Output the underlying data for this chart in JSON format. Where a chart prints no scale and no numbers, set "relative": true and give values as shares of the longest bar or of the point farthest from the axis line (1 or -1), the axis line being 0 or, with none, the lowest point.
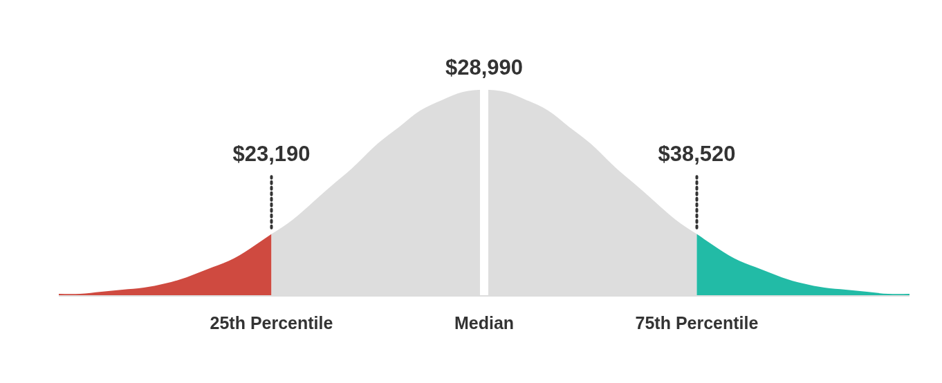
{
  "chart_data": {
    "type": "area",
    "relative": true,
    "grid": false,
    "legend": false,
    "categories": [
      null,
      null,
      null,
      null,
      null,
      null,
      null,
      null,
      null,
      null,
      "25th Percentile",
      null,
      null,
      null,
      null,
      null,
      null,
      null,
      null,
      null,
      "Median",
      null,
      null,
      null,
      null,
      null,
      null,
      null,
      null,
      null,
      "75th Percentile",
      null,
      null,
      null,
      null,
      null,
      null,
      null,
      null,
      null,
      null
    ],
    "series": [
      {
        "color": "#cf4a40",
        "values": [
          0.01,
          0.01,
          0.02,
          0.03,
          0.04,
          0.06,
          0.09,
          0.13,
          0.17,
          0.23,
          0.3,
          null,
          null,
          null,
          null,
          null,
          null,
          null,
          null,
          null,
          null,
          null,
          null,
          null,
          null,
          null,
          null,
          null,
          null,
          null,
          null,
          null,
          null,
          null,
          null,
          null,
          null,
          null,
          null,
          null,
          null
        ]
      },
      {
        "color": "#dddddd",
        "values": [
          null,
          null,
          null,
          null,
          null,
          null,
          null,
          null,
          null,
          null,
          0.3,
          0.37,
          0.46,
          0.55,
          0.64,
          0.74,
          0.82,
          0.9,
          0.95,
          0.99,
          1,
          0.99,
          0.95,
          0.9,
          0.82,
          0.74,
          0.64,
          0.55,
          0.46,
          0.37,
          0.3,
          null,
          null,
          null,
          null,
          null,
          null,
          null,
          null,
          null,
          null
        ]
      },
      {
        "color": "#22bba6",
        "values": [
          null,
          null,
          null,
          null,
          null,
          null,
          null,
          null,
          null,
          null,
          null,
          null,
          null,
          null,
          null,
          null,
          null,
          null,
          null,
          null,
          null,
          null,
          null,
          null,
          null,
          null,
          null,
          null,
          null,
          null,
          0.3,
          0.23,
          0.17,
          0.13,
          0.09,
          0.06,
          0.04,
          0.03,
          0.02,
          0.01,
          0.01
        ]
      }
    ],
    "ref_lines": [
      {
        "axis": "x",
        "value": "25th Percentile",
        "label": "$23,190",
        "line_style": "dotted",
        "color": "#333333"
      },
      {
        "axis": "x",
        "value": "Median",
        "label": "$28,990",
        "line_style": "solid",
        "color": "#ffffff"
      },
      {
        "axis": "x",
        "value": "75th Percentile",
        "label": "$38,520",
        "line_style": "dotted",
        "color": "#333333"
      }
    ]
  }
}
